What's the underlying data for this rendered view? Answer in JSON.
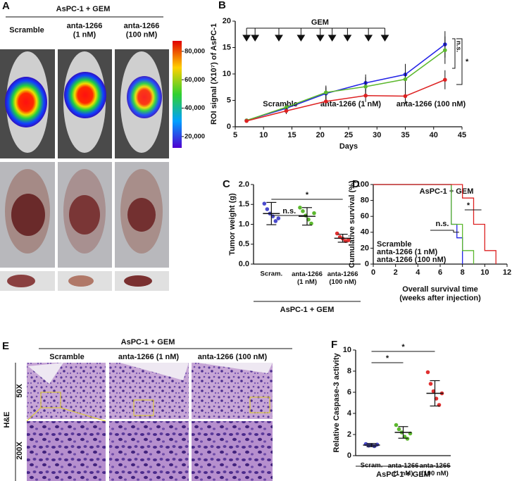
{
  "panel_a": {
    "letter": "A",
    "group": "AsPC-1 + GEM",
    "columns": [
      "Scramble",
      "anta-1266\n(1 nM)",
      "anta-1266\n(100 nM)"
    ],
    "colorbar": {
      "range": [
        12000,
        87400
      ],
      "ticks": [
        {
          "value": 80000,
          "label": "80,000"
        },
        {
          "value": 60000,
          "label": "60,000"
        },
        {
          "value": 40000,
          "label": "40,000"
        },
        {
          "value": 20000,
          "label": "20,000"
        }
      ]
    }
  },
  "panel_e": {
    "letter": "E",
    "group": "AsPC-1 + GEM",
    "columns": [
      "Scramble",
      "anta-1266 (1 nM)",
      "anta-1266 (100 nM)"
    ],
    "stain": "H&E",
    "rows": [
      "50X",
      "200X"
    ]
  },
  "chart_data": [
    {
      "letter": "B",
      "type": "line",
      "x": [
        7,
        14,
        21,
        28,
        35,
        42
      ],
      "xlim": [
        5,
        45
      ],
      "xticks": [
        5,
        10,
        15,
        20,
        25,
        30,
        35,
        40,
        45
      ],
      "ylim": [
        0,
        20
      ],
      "yticks": [
        0,
        5,
        10,
        15,
        20
      ],
      "xlabel": "Days",
      "ylabel": "ROI signal (X10⁷) of AsPC-1",
      "dosing": {
        "label": "GEM",
        "x": [
          8.5,
          12.7,
          16.6,
          20,
          22.1,
          24.8,
          28.5,
          31.4
        ]
      },
      "annotations": [
        "n.s.",
        "*"
      ],
      "series": [
        {
          "name": "Scramble",
          "color": "#2323e6",
          "values": [
            1.2,
            3.5,
            6.3,
            8.3,
            9.9,
            15.6
          ],
          "errors": [
            0.3,
            0.6,
            1.2,
            1.6,
            2,
            2.5
          ]
        },
        {
          "name": "anta-1266 (1 nM)",
          "color": "#5cb82e",
          "values": [
            1.2,
            3.7,
            6.5,
            7.6,
            9,
            14.5
          ],
          "errors": [
            0.3,
            0.6,
            1.3,
            1.8,
            2,
            2.6
          ]
        },
        {
          "name": "anta-1266 (100 nM)",
          "color": "#dd2222",
          "values": [
            1.1,
            3,
            4.8,
            5.9,
            5.8,
            8.9
          ],
          "errors": [
            0.3,
            0.6,
            1,
            1.2,
            1.5,
            1.8
          ]
        }
      ]
    },
    {
      "letter": "C",
      "type": "dotplot",
      "categories": [
        "Scram.",
        "anta-1266\n(1 nM)",
        "anta-1266\n(100 nM)"
      ],
      "values": [
        1.27,
        1.2,
        0.65
      ],
      "errors": [
        0.28,
        0.22,
        0.1
      ],
      "points": [
        [
          1.52,
          1.38,
          1.27,
          1.2,
          1.08,
          1.15
        ],
        [
          1.42,
          1.33,
          1.22,
          1.12,
          1.02,
          1.28
        ],
        [
          0.77,
          0.68,
          0.64,
          0.58,
          0.6
        ]
      ],
      "colors": [
        "#4a4acc",
        "#5cb82e",
        "#e03030"
      ],
      "ylim": [
        0,
        2
      ],
      "yticks": [
        {
          "value": 0,
          "label": "0.0"
        },
        {
          "value": 0.5,
          "label": "0.5"
        },
        {
          "value": 1,
          "label": "1.0"
        },
        {
          "value": 1.5,
          "label": "1.5"
        },
        {
          "value": 2,
          "label": "2.0"
        }
      ],
      "ylabel": "Tumor weight (g)",
      "group": "AsPC-1 + GEM",
      "annotations": [
        "n.s.",
        "*"
      ]
    },
    {
      "letter": "D",
      "type": "survival",
      "title": "AsPC-1 + GEM",
      "xlim": [
        0,
        12
      ],
      "xticks": [
        0,
        2,
        4,
        6,
        8,
        10,
        12
      ],
      "ylim": [
        0,
        100
      ],
      "yticks": [
        0,
        20,
        40,
        60,
        80,
        100
      ],
      "xlabel": "Overall survival time\n(weeks after injection)",
      "ylabel": "Cumulative survival (%)",
      "annotations": [
        "n.s.",
        "*"
      ],
      "series": [
        {
          "name": "Scramble",
          "color": "#2323e6",
          "x": [
            0,
            7,
            7.5,
            8
          ],
          "values": [
            100,
            50,
            33,
            0
          ]
        },
        {
          "name": "anta-1266 (1 nM)",
          "color": "#5cb82e",
          "x": [
            0,
            7,
            8,
            9
          ],
          "values": [
            100,
            50,
            17,
            0
          ]
        },
        {
          "name": "anta-1266 (100 nM)",
          "color": "#dd2222",
          "x": [
            0,
            8,
            9,
            10,
            11
          ],
          "values": [
            100,
            83,
            50,
            17,
            0
          ]
        }
      ]
    },
    {
      "letter": "F",
      "type": "dotplot",
      "categories": [
        "Scram.",
        "anta-1266\n(1 nM)",
        "anta-1266\n(100 nM)"
      ],
      "values": [
        1,
        2.2,
        5.9
      ],
      "errors": [
        0.15,
        0.55,
        1.2
      ],
      "points": [
        [
          1.1,
          0.95,
          1,
          0.9,
          1.05
        ],
        [
          2.9,
          2.5,
          2.2,
          1.8,
          1.6,
          2.1
        ],
        [
          7.9,
          6.8,
          6.1,
          5.4,
          4.8,
          5.9
        ]
      ],
      "colors": [
        "#4a4acc",
        "#5cb82e",
        "#e03030"
      ],
      "ylim": [
        0,
        10
      ],
      "yticks": [
        0,
        2,
        4,
        6,
        8,
        10
      ],
      "ylabel": "Relative Caspase-3  activity",
      "group": "AsPC-1 + GEM",
      "annotations": [
        "*",
        "*"
      ]
    }
  ]
}
